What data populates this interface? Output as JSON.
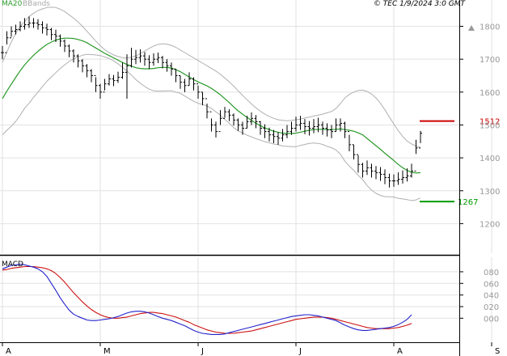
{
  "header": {
    "ma_label": "MA20",
    "bb_label": "BBands",
    "source": "© TEC 1/9/2024 3:0 GMT"
  },
  "colors": {
    "ma": "#2a9a2a",
    "bbands": "#b0b0b0",
    "price": "#000000",
    "resistance": "#cc0000",
    "support": "#009900",
    "macd": "#2222cc",
    "signal": "#cc1111",
    "grid": "#e2e2e2"
  },
  "chart_data": [
    {
      "type": "ohlc",
      "panel": "price",
      "title": "",
      "x_tick_labels": [
        "A",
        "M",
        "J",
        "J",
        "A",
        "S"
      ],
      "x_tick_index": [
        0,
        22,
        44,
        66,
        88,
        110
      ],
      "y_ticks": [
        1200,
        1300,
        1400,
        1500,
        1600,
        1700,
        1800
      ],
      "ylim": [
        1110,
        1880
      ],
      "grid": true,
      "levels": [
        {
          "name": "resistance",
          "value": 1512,
          "label": "1512"
        },
        {
          "name": "support",
          "value": 1267,
          "label": "1267"
        }
      ],
      "series": [
        {
          "name": "MA20",
          "values": [
            1580,
            1603,
            1624,
            1645,
            1665,
            1683,
            1698,
            1712,
            1724,
            1735,
            1745,
            1752,
            1758,
            1762,
            1764,
            1764,
            1763,
            1760,
            1756,
            1750,
            1742,
            1734,
            1726,
            1718,
            1711,
            1704,
            1697,
            1690,
            1684,
            1679,
            1674,
            1672,
            1671,
            1671,
            1672,
            1674,
            1675,
            1675,
            1673,
            1668,
            1662,
            1654,
            1646,
            1638,
            1631,
            1625,
            1619,
            1611,
            1602,
            1592,
            1580,
            1568,
            1555,
            1543,
            1533,
            1523,
            1514,
            1505,
            1498,
            1491,
            1486,
            1481,
            1478,
            1475,
            1474,
            1474,
            1475,
            1478,
            1481,
            1484,
            1486,
            1487,
            1487,
            1486,
            1486,
            1487,
            1488,
            1486,
            1484,
            1481,
            1476,
            1470,
            1459,
            1448,
            1437,
            1426,
            1414,
            1403,
            1392,
            1380,
            1370,
            1362,
            1356,
            1354,
            1355
          ]
        },
        {
          "name": "BBands upper",
          "values": [
            1690,
            1722,
            1752,
            1779,
            1800,
            1815,
            1830,
            1840,
            1848,
            1853,
            1857,
            1858,
            1857,
            1852,
            1845,
            1835,
            1825,
            1813,
            1800,
            1785,
            1770,
            1755,
            1741,
            1729,
            1720,
            1713,
            1708,
            1705,
            1704,
            1706,
            1710,
            1717,
            1725,
            1733,
            1740,
            1745,
            1747,
            1746,
            1742,
            1736,
            1728,
            1720,
            1712,
            1704,
            1696,
            1688,
            1680,
            1672,
            1664,
            1654,
            1643,
            1631,
            1618,
            1604,
            1590,
            1577,
            1564,
            1552,
            1542,
            1533,
            1526,
            1520,
            1516,
            1514,
            1513,
            1514,
            1516,
            1518,
            1521,
            1524,
            1527,
            1530,
            1533,
            1537,
            1541,
            1550,
            1565,
            1582,
            1593,
            1600,
            1605,
            1606,
            1602,
            1594,
            1582,
            1566,
            1546,
            1524,
            1503,
            1483,
            1465,
            1451,
            1442,
            1436,
            1432
          ]
        },
        {
          "name": "BBands lower",
          "values": [
            1470,
            1484,
            1496,
            1511,
            1530,
            1551,
            1566,
            1584,
            1600,
            1617,
            1633,
            1646,
            1659,
            1672,
            1683,
            1693,
            1701,
            1707,
            1712,
            1715,
            1714,
            1713,
            1711,
            1707,
            1702,
            1695,
            1686,
            1675,
            1664,
            1652,
            1638,
            1627,
            1617,
            1609,
            1604,
            1603,
            1603,
            1604,
            1604,
            1600,
            1596,
            1588,
            1580,
            1572,
            1566,
            1562,
            1558,
            1550,
            1540,
            1530,
            1517,
            1505,
            1492,
            1482,
            1476,
            1469,
            1464,
            1458,
            1454,
            1449,
            1446,
            1442,
            1440,
            1436,
            1435,
            1434,
            1434,
            1438,
            1441,
            1444,
            1445,
            1444,
            1441,
            1435,
            1431,
            1424,
            1411,
            1390,
            1375,
            1362,
            1347,
            1334,
            1316,
            1302,
            1292,
            1286,
            1282,
            1282,
            1281,
            1277,
            1275,
            1273,
            1270,
            1272,
            1278
          ]
        },
        {
          "name": "Close",
          "values": [
            1720,
            1765,
            1785,
            1790,
            1800,
            1805,
            1810,
            1810,
            1805,
            1795,
            1790,
            1775,
            1770,
            1755,
            1740,
            1725,
            1710,
            1695,
            1680,
            1665,
            1650,
            1620,
            1600,
            1625,
            1640,
            1635,
            1645,
            1660,
            1680,
            1700,
            1705,
            1710,
            1700,
            1690,
            1700,
            1705,
            1690,
            1680,
            1670,
            1650,
            1630,
            1620,
            1640,
            1625,
            1600,
            1580,
            1540,
            1500,
            1480,
            1520,
            1540,
            1530,
            1515,
            1500,
            1490,
            1510,
            1520,
            1510,
            1490,
            1480,
            1470,
            1465,
            1460,
            1470,
            1480,
            1490,
            1500,
            1505,
            1495,
            1490,
            1495,
            1500,
            1490,
            1485,
            1480,
            1500,
            1505,
            1480,
            1440,
            1410,
            1380,
            1360,
            1370,
            1360,
            1355,
            1350,
            1340,
            1330,
            1330,
            1335,
            1340,
            1345,
            1360,
            1430,
            1475
          ]
        },
        {
          "name": "High",
          "values": [
            1740,
            1785,
            1800,
            1805,
            1815,
            1825,
            1830,
            1825,
            1822,
            1815,
            1808,
            1795,
            1790,
            1775,
            1760,
            1745,
            1730,
            1715,
            1700,
            1685,
            1670,
            1645,
            1625,
            1640,
            1655,
            1652,
            1662,
            1690,
            1715,
            1735,
            1728,
            1730,
            1722,
            1712,
            1718,
            1720,
            1710,
            1700,
            1690,
            1670,
            1650,
            1640,
            1660,
            1645,
            1620,
            1600,
            1565,
            1520,
            1510,
            1545,
            1555,
            1548,
            1535,
            1520,
            1510,
            1528,
            1538,
            1530,
            1512,
            1502,
            1492,
            1485,
            1478,
            1488,
            1500,
            1510,
            1525,
            1528,
            1518,
            1512,
            1518,
            1522,
            1510,
            1505,
            1500,
            1520,
            1520,
            1510,
            1470,
            1440,
            1408,
            1385,
            1392,
            1382,
            1375,
            1372,
            1365,
            1352,
            1350,
            1356,
            1362,
            1368,
            1382,
            1455,
            1482
          ]
        },
        {
          "name": "Low",
          "values": [
            1700,
            1745,
            1768,
            1775,
            1785,
            1790,
            1795,
            1795,
            1790,
            1778,
            1772,
            1758,
            1752,
            1738,
            1722,
            1706,
            1690,
            1675,
            1660,
            1645,
            1630,
            1600,
            1580,
            1605,
            1620,
            1618,
            1628,
            1640,
            1580,
            1675,
            1685,
            1690,
            1680,
            1670,
            1680,
            1688,
            1672,
            1662,
            1650,
            1630,
            1610,
            1600,
            1620,
            1605,
            1580,
            1560,
            1520,
            1480,
            1462,
            1500,
            1522,
            1512,
            1498,
            1482,
            1470,
            1490,
            1500,
            1490,
            1470,
            1460,
            1450,
            1445,
            1440,
            1450,
            1460,
            1470,
            1480,
            1485,
            1472,
            1468,
            1475,
            1478,
            1470,
            1465,
            1460,
            1480,
            1480,
            1460,
            1420,
            1395,
            1355,
            1340,
            1348,
            1340,
            1335,
            1330,
            1320,
            1310,
            1312,
            1318,
            1322,
            1328,
            1340,
            1412,
            1445
          ]
        }
      ]
    },
    {
      "type": "line",
      "panel": "macd",
      "title": "MACD",
      "y_ticks": [
        0,
        20,
        40,
        60,
        80
      ],
      "y_tick_labels": [
        "000",
        "020",
        "040",
        "060",
        "080"
      ],
      "ylim": [
        -40,
        105
      ],
      "grid": true,
      "series": [
        {
          "name": "MACD",
          "values": [
            85,
            88,
            91,
            92,
            93,
            92,
            90,
            88,
            85,
            80,
            72,
            60,
            48,
            35,
            24,
            14,
            7,
            3,
            0,
            -3,
            -4,
            -4,
            -3,
            -2,
            -1,
            1,
            3,
            6,
            9,
            11,
            12,
            12,
            11,
            9,
            6,
            3,
            0,
            -2,
            -4,
            -7,
            -10,
            -13,
            -17,
            -21,
            -24,
            -26,
            -27,
            -28,
            -28,
            -28,
            -27,
            -25,
            -23,
            -21,
            -19,
            -17,
            -15,
            -13,
            -11,
            -9,
            -7,
            -5,
            -3,
            -1,
            1,
            3,
            4,
            5,
            6,
            6,
            5,
            4,
            2,
            0,
            -2,
            -4,
            -8,
            -12,
            -15,
            -18,
            -20,
            -21,
            -21,
            -20,
            -19,
            -18,
            -17,
            -16,
            -14,
            -11,
            -7,
            -2,
            6
          ]
        },
        {
          "name": "Signal",
          "values": [
            83,
            84,
            86,
            87,
            88,
            89,
            89,
            89,
            88,
            87,
            85,
            82,
            77,
            70,
            62,
            53,
            44,
            36,
            28,
            21,
            15,
            10,
            6,
            3,
            1,
            0,
            0,
            1,
            2,
            4,
            6,
            8,
            9,
            10,
            10,
            9,
            8,
            6,
            4,
            2,
            -1,
            -4,
            -7,
            -11,
            -14,
            -17,
            -20,
            -22,
            -24,
            -25,
            -26,
            -26,
            -26,
            -25,
            -24,
            -23,
            -22,
            -20,
            -18,
            -16,
            -14,
            -12,
            -10,
            -8,
            -6,
            -4,
            -2,
            -1,
            0,
            1,
            2,
            2,
            2,
            1,
            0,
            -2,
            -4,
            -6,
            -8,
            -10,
            -12,
            -14,
            -16,
            -17,
            -18,
            -18,
            -18,
            -18,
            -17,
            -16,
            -14,
            -12,
            -9
          ]
        }
      ]
    }
  ]
}
